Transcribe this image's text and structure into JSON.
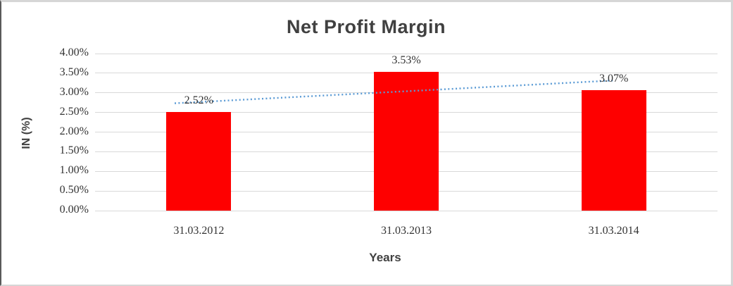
{
  "chart_data": {
    "type": "bar",
    "title": "Net Profit Margin",
    "xlabel": "Years",
    "ylabel": "IN (%)",
    "categories": [
      "31.03.2012",
      "31.03.2013",
      "31.03.2014"
    ],
    "values": [
      2.52,
      3.53,
      3.07
    ],
    "data_labels": [
      "2.52%",
      "3.53%",
      "3.07%"
    ],
    "ytick_labels": [
      "0.00%",
      "0.50%",
      "1.00%",
      "1.50%",
      "2.00%",
      "2.50%",
      "3.00%",
      "3.50%",
      "4.00%"
    ],
    "ytick_step": 0.5,
    "ylim": [
      0,
      4
    ],
    "grid": true,
    "legend": "none",
    "bar_color": "#fe0000",
    "gridline_color": "#d9d9d9",
    "text_color": "#333333",
    "title_color": "#404040",
    "trendline": {
      "type": "linear",
      "style": "dotted",
      "color": "#5b9bd5"
    }
  }
}
